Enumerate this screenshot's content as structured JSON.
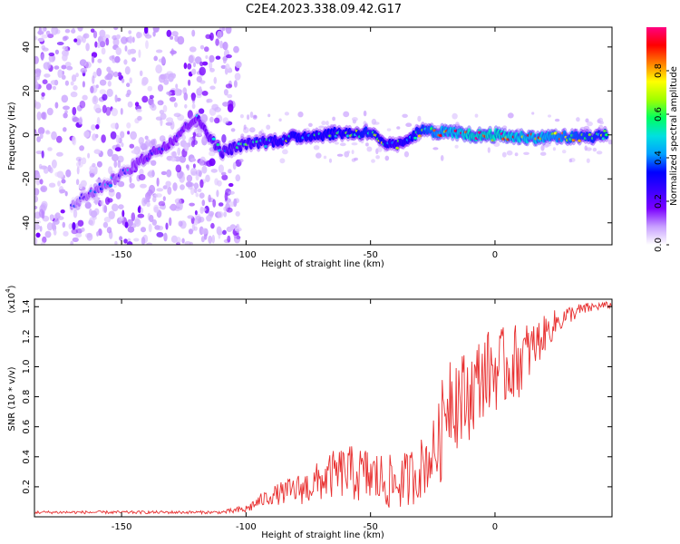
{
  "figure": {
    "title": "C2E4.2023.338.09.42.G17"
  },
  "chart_data": [
    {
      "type": "heatmap",
      "name": "spectrogram",
      "xlabel": "Height of straight line (km)",
      "ylabel": "Frequency (Hz)",
      "xlim": [
        -185,
        47
      ],
      "ylim": [
        -50,
        49
      ],
      "xticks": [
        -150,
        -100,
        -50,
        0
      ],
      "yticks": [
        -40,
        -20,
        0,
        20,
        40
      ],
      "colorbar": {
        "label": "Normalized spectral amplitude",
        "range": [
          0,
          1
        ],
        "ticks": [
          0.0,
          0.2,
          0.4,
          0.6,
          0.8
        ],
        "tick_labels": [
          "0.0",
          "0.2",
          "0.4",
          "0.6",
          "0.8"
        ],
        "colormap": [
          "#ffffff",
          "#c8a0ff",
          "#7a00ff",
          "#3a00ff",
          "#0000ff",
          "#00a0ff",
          "#00e0e0",
          "#00ff60",
          "#a0ff00",
          "#ffff00",
          "#ff8000",
          "#ff0000",
          "#ff0080"
        ]
      },
      "ridge_points": [
        {
          "x": -170,
          "y": -32
        },
        {
          "x": -160,
          "y": -25
        },
        {
          "x": -150,
          "y": -18
        },
        {
          "x": -140,
          "y": -10
        },
        {
          "x": -130,
          "y": -3
        },
        {
          "x": -120,
          "y": 8
        },
        {
          "x": -110,
          "y": -8
        },
        {
          "x": -100,
          "y": -4
        },
        {
          "x": -90,
          "y": -3
        },
        {
          "x": -80,
          "y": -1
        },
        {
          "x": -70,
          "y": 0
        },
        {
          "x": -60,
          "y": 1
        },
        {
          "x": -50,
          "y": 1
        },
        {
          "x": -45,
          "y": -4
        },
        {
          "x": -40,
          "y": -5
        },
        {
          "x": -35,
          "y": -2
        },
        {
          "x": -30,
          "y": 2
        },
        {
          "x": -20,
          "y": 1
        },
        {
          "x": -10,
          "y": 0
        },
        {
          "x": 0,
          "y": 0
        },
        {
          "x": 10,
          "y": -1
        },
        {
          "x": 20,
          "y": -1
        },
        {
          "x": 30,
          "y": -1
        },
        {
          "x": 40,
          "y": -1
        },
        {
          "x": 45,
          "y": 0
        }
      ],
      "ridge_amplitude": [
        0.15,
        0.2,
        0.2,
        0.25,
        0.25,
        0.25,
        0.35,
        0.4,
        0.45,
        0.5,
        0.5,
        0.5,
        0.55,
        0.5,
        0.45,
        0.5,
        0.55,
        0.7,
        0.8,
        0.8,
        0.75,
        0.7,
        0.6,
        0.55,
        0.55
      ]
    },
    {
      "type": "line",
      "name": "snr",
      "xlabel": "Height of straight line (km)",
      "ylabel": "SNR (10 * v/v)",
      "yscale_label": "(x10",
      "yscale_exponent": "4",
      "yscale_suffix": ")",
      "xlim": [
        -185,
        47
      ],
      "ylim": [
        0,
        1.45
      ],
      "xticks": [
        -150,
        -100,
        -50,
        0
      ],
      "yticks": [
        0.2,
        0.4,
        0.6,
        0.8,
        1.0,
        1.2,
        1.4
      ],
      "ytick_labels": [
        "0.2",
        "0.4",
        "0.6",
        "0.8",
        "1.0",
        "1.2",
        "1.4"
      ],
      "color": "#e83030",
      "series": [
        {
          "x": [
            -185,
            -170,
            -150,
            -130,
            -110,
            -100,
            -95,
            -90,
            -85,
            -80,
            -75,
            -70,
            -65,
            -60,
            -55,
            -50,
            -45,
            -40,
            -35,
            -30,
            -25,
            -22,
            -20,
            -18,
            -15,
            -12,
            -10,
            -5,
            0,
            5,
            10,
            15,
            20,
            25,
            30,
            35,
            40,
            45,
            47
          ],
          "y": [
            0.03,
            0.03,
            0.03,
            0.03,
            0.03,
            0.05,
            0.1,
            0.14,
            0.16,
            0.18,
            0.2,
            0.24,
            0.28,
            0.3,
            0.28,
            0.27,
            0.24,
            0.22,
            0.25,
            0.32,
            0.42,
            0.5,
            0.75,
            0.85,
            0.8,
            0.78,
            0.82,
            0.95,
            0.98,
            1.0,
            1.05,
            1.12,
            1.22,
            1.3,
            1.35,
            1.38,
            1.4,
            1.41,
            1.41
          ]
        }
      ],
      "noise_envelope": {
        "x": [
          -185,
          -110,
          -100,
          -90,
          -75,
          -60,
          -50,
          -40,
          -25,
          -20,
          -15,
          -10,
          0,
          10,
          20,
          30,
          40,
          47
        ],
        "amplitude": [
          0.01,
          0.01,
          0.03,
          0.06,
          0.12,
          0.18,
          0.2,
          0.18,
          0.22,
          0.35,
          0.35,
          0.3,
          0.28,
          0.25,
          0.12,
          0.06,
          0.03,
          0.02
        ]
      }
    }
  ]
}
